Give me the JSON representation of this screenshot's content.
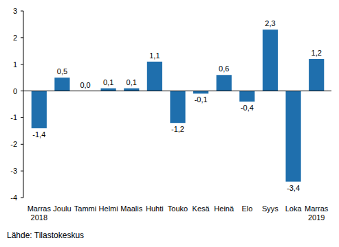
{
  "chart_data": {
    "type": "bar",
    "categories": [
      "Marras\n2018",
      "Joulu",
      "Tammi",
      "Helmi",
      "Maalis",
      "Huhti",
      "Touko",
      "Kesä",
      "Heinä",
      "Elo",
      "Syys",
      "Loka",
      "Marras\n2019"
    ],
    "values": [
      -1.4,
      0.5,
      0.0,
      0.1,
      0.1,
      1.1,
      -1.2,
      -0.1,
      0.6,
      -0.4,
      2.3,
      -3.4,
      1.2
    ],
    "value_labels": [
      "-1,4",
      "0,5",
      "0,0",
      "0,1",
      "0,1",
      "1,1",
      "-1,2",
      "-0,1",
      "0,6",
      "-0,4",
      "2,3",
      "-3,4",
      "1,2"
    ],
    "data_labels": true,
    "color": "#1f6fad",
    "ylim": [
      -4,
      3
    ],
    "yticks": [
      -4,
      -3,
      -2,
      -1,
      0,
      1,
      2,
      3
    ],
    "grid": false,
    "source": "Lähde: Tilastokeskus"
  }
}
